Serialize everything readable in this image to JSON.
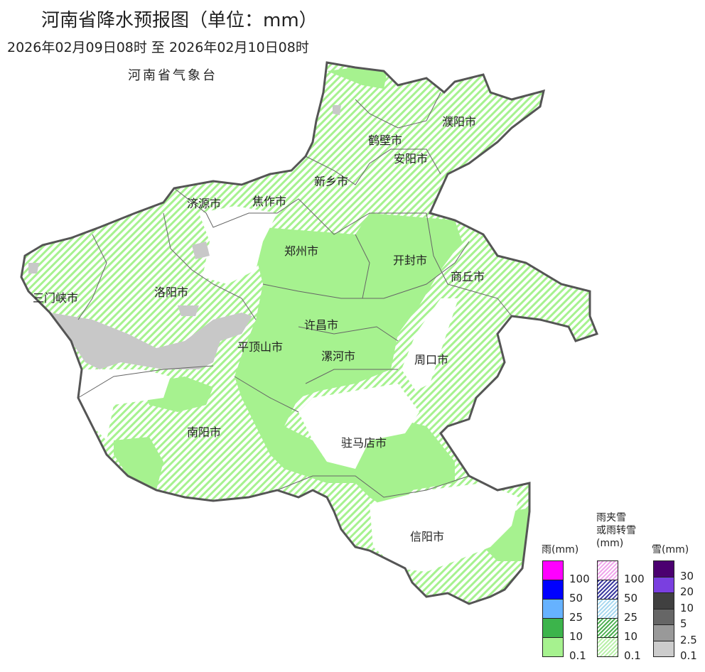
{
  "header": {
    "title": "河南省降水预报图（单位：mm）",
    "period": "2026年02月09日08时  至  2026年02月10日08时",
    "agency": "河南省气象台"
  },
  "cities": [
    "濮阳市",
    "鹤壁市",
    "安阳市",
    "新乡市",
    "济源市",
    "焦作市",
    "郑州市",
    "开封市",
    "商丘市",
    "三门峡市",
    "洛阳市",
    "许昌市",
    "平顶山市",
    "漯河市",
    "周口市",
    "南阳市",
    "驻马店市",
    "信阳市"
  ],
  "legend": {
    "rain": {
      "title": "雨(mm)",
      "colors": [
        "#ff00ff",
        "#0000ff",
        "#66b2ff",
        "#3cb44b",
        "#a6f28f"
      ],
      "labels": [
        "100",
        "50",
        "25",
        "10",
        "0.1"
      ]
    },
    "mix": {
      "title_line1": "雨夹雪",
      "title_line2": "或雨转雪",
      "title_line3": "(mm)",
      "colors": [
        "#f0a6ec",
        "#3a3aa0",
        "#a8d8f0",
        "#4caf50",
        "#b8f0a8"
      ],
      "labels": [
        "100",
        "50",
        "25",
        "10",
        "0.1"
      ]
    },
    "snow": {
      "title": "雪(mm)",
      "colors": [
        "#4b0070",
        "#7a3fe0",
        "#404040",
        "#666666",
        "#999999",
        "#cccccc"
      ],
      "labels": [
        "30",
        "20",
        "10",
        "5",
        "2.5",
        "0.1"
      ]
    }
  },
  "colors": {
    "rain_light": "#a6f28f",
    "mix_light_hatch": "#a6f28f",
    "snow_light": "#c8c8c8",
    "boundary": "#555555"
  }
}
